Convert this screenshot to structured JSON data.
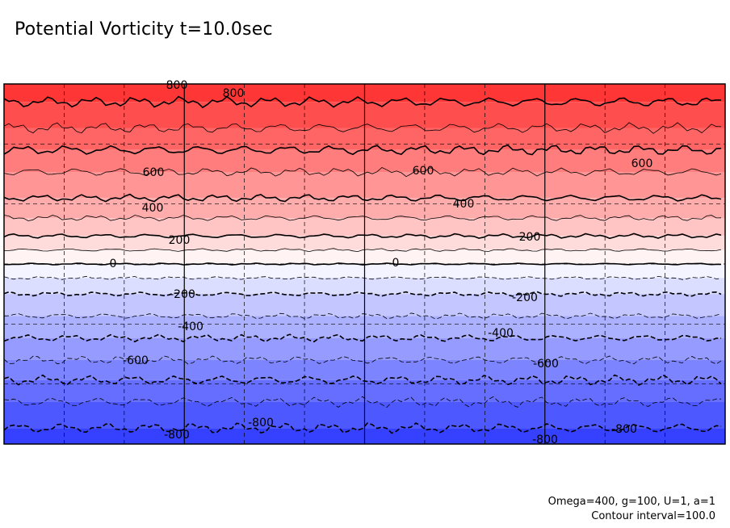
{
  "chart_data": {
    "type": "contour",
    "title": "Potential Vorticity t=10.0sec",
    "xlabel": "",
    "ylabel": "",
    "x_range": [
      0,
      360
    ],
    "y_range": [
      -90,
      90
    ],
    "colorscale": {
      "min": -900,
      "max": 900,
      "negative": "#2a36ff",
      "zero": "#ffffff",
      "positive": "#ff2a2a"
    },
    "grid": {
      "major_x": [
        90,
        180,
        270
      ],
      "minor_x_step": 30,
      "minor_y_step": 30,
      "minor_style": "dashed"
    },
    "contour_interval": 100.0,
    "contour_labels": [
      "800",
      "800",
      "600",
      "600",
      "600",
      "400",
      "400",
      "200",
      "200",
      "0",
      "0",
      "-200",
      "-200",
      "-400",
      "-400",
      "-600",
      "-600",
      "-800",
      "-800",
      "-800",
      "-800"
    ],
    "band_levels": [
      {
        "level": 800,
        "lat": 81
      },
      {
        "level": 700,
        "lat": 68
      },
      {
        "level": 600,
        "lat": 57
      },
      {
        "level": 500,
        "lat": 46
      },
      {
        "level": 400,
        "lat": 33
      },
      {
        "level": 300,
        "lat": 23
      },
      {
        "level": 200,
        "lat": 14
      },
      {
        "level": 100,
        "lat": 7
      },
      {
        "level": 0,
        "lat": 0
      },
      {
        "level": -100,
        "lat": -7
      },
      {
        "level": -200,
        "lat": -15
      },
      {
        "level": -300,
        "lat": -26
      },
      {
        "level": -400,
        "lat": -37
      },
      {
        "level": -500,
        "lat": -48
      },
      {
        "level": -600,
        "lat": -58
      },
      {
        "level": -700,
        "lat": -69
      },
      {
        "level": -800,
        "lat": -82
      }
    ]
  },
  "notes": {
    "params": "Omega=400, g=100, U=1, a=1",
    "interval": "Contour interval=100.0"
  }
}
